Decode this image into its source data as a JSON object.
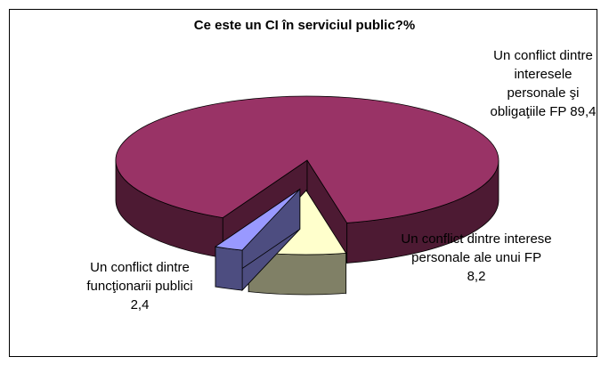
{
  "chart_data": {
    "type": "pie",
    "title": "Ce este un CI în serviciul public?%",
    "categories": [
      "Un conflict dintre interesele personale şi obligaţiile FP",
      "Un conflict dintre interese personale ale unui FP",
      "Un conflict dintre funcţionarii publici"
    ],
    "values": [
      89.4,
      8.2,
      2.4
    ],
    "value_labels": [
      "89,4",
      "8,2",
      "2,4"
    ],
    "colors": [
      "#993366",
      "#ffffcc",
      "#9999ff"
    ]
  }
}
